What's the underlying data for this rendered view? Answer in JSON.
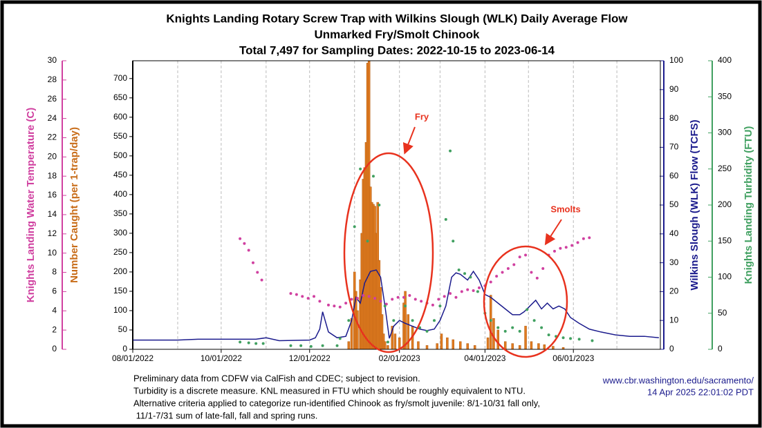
{
  "chart_data": {
    "type": "bar",
    "title": [
      "Knights Landing Rotary Screw Trap with Wilkins Slough (WLK) Daily Average Flow",
      "Unmarked Fry/Smolt Chinook",
      "Total 7,497 for Sampling Dates: 2022-10-15 to 2023-06-14"
    ],
    "xlim": [
      "2022-08-01",
      "2023-07-31"
    ],
    "xticks": [
      {
        "value": "2022-08-01",
        "label": "08/01/2022"
      },
      {
        "value": "2022-10-01",
        "label": "10/01/2022"
      },
      {
        "value": "2022-12-01",
        "label": "12/01/2022"
      },
      {
        "value": "2023-02-01",
        "label": "02/01/2023"
      },
      {
        "value": "2023-04-01",
        "label": "04/01/2023"
      },
      {
        "value": "2023-06-01",
        "label": "06/01/2023"
      }
    ],
    "xgrid": [
      "2022-09-01",
      "2022-10-01",
      "2022-11-01",
      "2022-12-01",
      "2023-01-01",
      "2023-02-01",
      "2023-03-01",
      "2023-04-01",
      "2023-05-01",
      "2023-06-01",
      "2023-07-01"
    ],
    "ylabel": "Number Caught (per 1-trap/day)",
    "ylim": [
      0,
      746
    ],
    "yticks": [
      0,
      50,
      100,
      150,
      200,
      250,
      300,
      350,
      400,
      450,
      500,
      550,
      600,
      650,
      700
    ],
    "y2label": "Wilkins Slough (WLK) Flow (TCFS)",
    "y2lim": [
      0,
      100
    ],
    "y2ticks": [
      0,
      10,
      20,
      30,
      40,
      50,
      60,
      70,
      80,
      90,
      100
    ],
    "y3label": "Knights Landing Water Temperature (C)",
    "y3lim": [
      0,
      30
    ],
    "y3ticks": [
      0,
      2,
      4,
      6,
      8,
      10,
      12,
      14,
      16,
      18,
      20,
      22,
      24,
      26,
      28,
      30
    ],
    "y4label": "Knights Landing Turbidity (FTU)",
    "y4lim": [
      0,
      400
    ],
    "y4ticks": [
      0,
      50,
      100,
      150,
      200,
      250,
      300,
      350,
      400
    ],
    "series": [
      {
        "type": "bar",
        "axis": "y",
        "color": "#e07b20",
        "x": [
          "2022-12-28",
          "2022-12-30",
          "2023-01-01",
          "2023-01-02",
          "2023-01-03",
          "2023-01-05",
          "2023-01-06",
          "2023-01-07",
          "2023-01-08",
          "2023-01-09",
          "2023-01-10",
          "2023-01-11",
          "2023-01-12",
          "2023-01-13",
          "2023-01-14",
          "2023-01-15",
          "2023-01-16",
          "2023-01-17",
          "2023-01-18",
          "2023-01-19",
          "2023-01-20",
          "2023-01-21",
          "2023-01-22",
          "2023-01-24",
          "2023-01-27",
          "2023-01-29",
          "2023-02-01",
          "2023-02-04",
          "2023-02-05",
          "2023-02-07",
          "2023-02-10",
          "2023-02-14",
          "2023-02-20",
          "2023-02-27",
          "2023-03-02",
          "2023-03-06",
          "2023-03-10",
          "2023-03-15",
          "2023-03-20",
          "2023-03-25",
          "2023-04-03",
          "2023-04-05",
          "2023-04-07",
          "2023-04-10",
          "2023-04-15",
          "2023-04-20",
          "2023-04-25",
          "2023-04-29",
          "2023-05-03",
          "2023-05-08",
          "2023-05-12",
          "2023-05-18",
          "2023-05-25"
        ],
        "values": [
          20,
          80,
          200,
          150,
          100,
          180,
          300,
          440,
          470,
          535,
          740,
          745,
          420,
          380,
          375,
          370,
          300,
          380,
          230,
          160,
          90,
          40,
          20,
          10,
          60,
          40,
          30,
          120,
          150,
          90,
          60,
          20,
          10,
          15,
          40,
          30,
          25,
          20,
          15,
          10,
          30,
          140,
          80,
          50,
          20,
          15,
          10,
          60,
          20,
          15,
          12,
          8,
          5
        ]
      },
      {
        "type": "line",
        "axis": "y2",
        "color": "#1a1a8c",
        "x": [
          "2022-08-01",
          "2022-09-01",
          "2022-09-15",
          "2022-10-25",
          "2022-11-01",
          "2022-11-10",
          "2022-12-01",
          "2022-12-05",
          "2022-12-08",
          "2022-12-10",
          "2022-12-14",
          "2022-12-20",
          "2022-12-26",
          "2022-12-30",
          "2023-01-02",
          "2023-01-05",
          "2023-01-08",
          "2023-01-12",
          "2023-01-16",
          "2023-01-19",
          "2023-01-22",
          "2023-01-25",
          "2023-01-28",
          "2023-02-01",
          "2023-02-05",
          "2023-02-10",
          "2023-02-15",
          "2023-02-20",
          "2023-02-25",
          "2023-03-01",
          "2023-03-05",
          "2023-03-09",
          "2023-03-12",
          "2023-03-15",
          "2023-03-20",
          "2023-03-24",
          "2023-03-28",
          "2023-04-01",
          "2023-04-05",
          "2023-04-10",
          "2023-04-15",
          "2023-04-20",
          "2023-04-25",
          "2023-04-28",
          "2023-05-02",
          "2023-05-06",
          "2023-05-10",
          "2023-05-14",
          "2023-05-18",
          "2023-05-22",
          "2023-05-26",
          "2023-05-30",
          "2023-06-05",
          "2023-06-12",
          "2023-06-20",
          "2023-06-30",
          "2023-07-10",
          "2023-07-20",
          "2023-07-30"
        ],
        "values": [
          3.2,
          3.2,
          3.5,
          3.5,
          4,
          3,
          3.2,
          4,
          7,
          13,
          6,
          4,
          4.5,
          10,
          18,
          16,
          23,
          27,
          27.5,
          25,
          15,
          3.8,
          8,
          10,
          9,
          8,
          7,
          6.5,
          7,
          10,
          15,
          25,
          26.5,
          26,
          24,
          27,
          24,
          19,
          18,
          16,
          14,
          12,
          12,
          13,
          15,
          17,
          14,
          16,
          14,
          15,
          14,
          11,
          9,
          7,
          6,
          5,
          4.5,
          4.5,
          4
        ]
      },
      {
        "type": "scatter",
        "axis": "y3",
        "color": "#d040a0",
        "x": [
          "2022-10-14",
          "2022-10-17",
          "2022-10-20",
          "2022-10-23",
          "2022-10-26",
          "2022-10-29",
          "2022-11-18",
          "2022-11-22",
          "2022-11-26",
          "2022-11-30",
          "2022-12-04",
          "2022-12-08",
          "2022-12-14",
          "2022-12-18",
          "2022-12-22",
          "2022-12-26",
          "2022-12-30",
          "2023-01-03",
          "2023-01-07",
          "2023-01-11",
          "2023-01-15",
          "2023-01-19",
          "2023-01-23",
          "2023-01-27",
          "2023-01-31",
          "2023-02-04",
          "2023-02-08",
          "2023-02-12",
          "2023-02-16",
          "2023-02-20",
          "2023-02-24",
          "2023-02-28",
          "2023-03-04",
          "2023-03-08",
          "2023-03-12",
          "2023-03-16",
          "2023-03-20",
          "2023-03-24",
          "2023-03-28",
          "2023-04-01",
          "2023-04-05",
          "2023-04-09",
          "2023-04-13",
          "2023-04-17",
          "2023-04-21",
          "2023-04-25",
          "2023-04-29",
          "2023-05-03",
          "2023-05-07",
          "2023-05-11",
          "2023-05-15",
          "2023-05-19",
          "2023-05-23",
          "2023-05-27",
          "2023-05-31",
          "2023-06-04",
          "2023-06-08",
          "2023-06-12"
        ],
        "values": [
          11.5,
          11,
          10.3,
          9,
          8,
          7.2,
          5.8,
          5.7,
          5.5,
          5.3,
          5.5,
          5,
          4.6,
          4.5,
          4.4,
          4.8,
          5.2,
          5.3,
          5.6,
          5.5,
          5.3,
          5,
          4.7,
          5.2,
          5.4,
          5.4,
          5.6,
          5.2,
          5,
          4.8,
          4.6,
          5.2,
          5.5,
          5.8,
          5.4,
          6,
          6.2,
          6.1,
          6.4,
          6.6,
          7,
          7.6,
          8,
          8.4,
          8.8,
          9.6,
          9.8,
          8,
          7.4,
          8.4,
          9.8,
          10.2,
          10.5,
          10.6,
          10.8,
          11.1,
          11.5,
          11.6
        ]
      },
      {
        "type": "scatter",
        "axis": "y4",
        "color": "#40a060",
        "x": [
          "2022-10-14",
          "2022-10-20",
          "2022-10-25",
          "2022-10-30",
          "2022-11-18",
          "2022-11-25",
          "2022-12-02",
          "2022-12-10",
          "2022-12-20",
          "2022-12-22",
          "2022-12-28",
          "2023-01-01",
          "2023-01-05",
          "2023-01-10",
          "2023-01-14",
          "2023-01-18",
          "2023-01-22",
          "2023-01-24",
          "2023-01-28",
          "2023-02-05",
          "2023-02-10",
          "2023-02-15",
          "2023-02-20",
          "2023-02-25",
          "2023-03-01",
          "2023-03-05",
          "2023-03-08",
          "2023-03-10",
          "2023-03-14",
          "2023-03-18",
          "2023-03-22",
          "2023-03-27",
          "2023-04-01",
          "2023-04-05",
          "2023-04-10",
          "2023-04-15",
          "2023-04-20",
          "2023-04-25",
          "2023-04-30",
          "2023-05-05",
          "2023-05-10",
          "2023-05-15",
          "2023-05-20",
          "2023-05-25",
          "2023-05-30",
          "2023-06-05",
          "2023-06-14"
        ],
        "values": [
          10,
          9,
          8,
          8,
          5,
          5,
          4,
          5,
          5,
          15,
          40,
          170,
          250,
          150,
          240,
          200,
          60,
          10,
          40,
          60,
          40,
          30,
          25,
          40,
          60,
          180,
          275,
          150,
          110,
          105,
          100,
          80,
          50,
          40,
          30,
          25,
          30,
          25,
          55,
          40,
          30,
          20,
          18,
          16,
          15,
          14,
          12
        ]
      }
    ],
    "annotations": [
      "Fry",
      "Smolts"
    ],
    "notes": [
      "Preliminary data from CDFW via CalFish and CDEC; subject to revision.",
      "Turbidity is a discrete measure. KNL measured in FTU which should be roughly equivalent to NTU.",
      "Alternative criteria applied to categorize run-identified Chinook as fry/smolt juvenile: 8/1-10/31 fall only,",
      " 11/1-7/31 sum of late-fall, fall and spring runs."
    ],
    "source": "www.cbr.washington.edu/sacramento/",
    "timestamp": "14 Apr 2025 22:01:02 PDT"
  }
}
